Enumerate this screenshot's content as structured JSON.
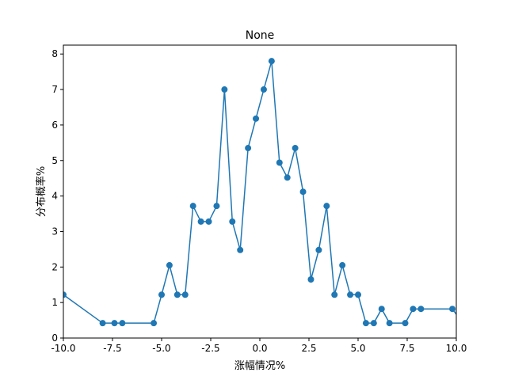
{
  "chart_data": {
    "type": "line",
    "title": "None",
    "xlabel": "涨幅情况%",
    "ylabel": "分布概率%",
    "xlim": [
      -10,
      10
    ],
    "ylim": [
      0,
      8.25
    ],
    "xticks": [
      -10.0,
      -7.5,
      -5.0,
      -2.5,
      0.0,
      2.5,
      5.0,
      7.5,
      10.0
    ],
    "xtick_labels": [
      "-10.0",
      "-7.5",
      "-5.0",
      "-2.5",
      "0.0",
      "2.5",
      "5.0",
      "7.5",
      "10.0"
    ],
    "yticks": [
      0,
      1,
      2,
      3,
      4,
      5,
      6,
      7,
      8
    ],
    "ytick_labels": [
      "0",
      "1",
      "2",
      "3",
      "4",
      "5",
      "6",
      "7",
      "8"
    ],
    "grid": false,
    "series_color": "#1f77b4",
    "series": [
      {
        "x": [
          -10.0,
          -8.0,
          -7.4,
          -7.0,
          -5.4,
          -5.0,
          -4.6,
          -4.2,
          -3.8,
          -3.4,
          -3.0,
          -2.6,
          -2.2,
          -1.8,
          -1.4,
          -1.0,
          -0.6,
          -0.2,
          0.2,
          0.6,
          1.0,
          1.4,
          1.8,
          2.2,
          2.6,
          3.0,
          3.4,
          3.8,
          4.2,
          4.6,
          5.0,
          5.4,
          5.8,
          6.2,
          6.6,
          7.4,
          7.8,
          8.2,
          9.8,
          10.2
        ],
        "y": [
          1.22,
          0.42,
          0.42,
          0.42,
          0.42,
          1.22,
          2.05,
          1.22,
          1.22,
          3.72,
          3.28,
          3.28,
          3.72,
          7.0,
          3.28,
          2.48,
          5.35,
          6.18,
          7.0,
          7.8,
          4.94,
          4.52,
          5.35,
          4.12,
          1.65,
          2.48,
          3.72,
          1.22,
          2.05,
          1.22,
          1.22,
          0.42,
          0.42,
          0.82,
          0.42,
          0.42,
          0.82,
          0.82,
          0.82,
          0.52
        ]
      }
    ]
  }
}
